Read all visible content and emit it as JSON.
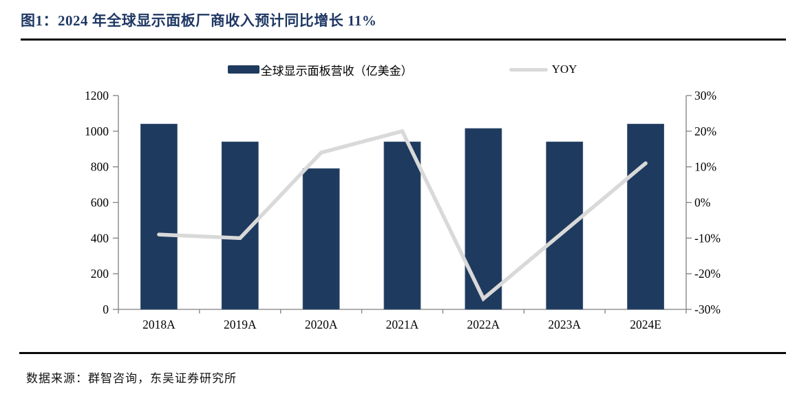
{
  "page": {
    "title": "图1：2024 年全球显示面板厂商收入预计同比增长 11%",
    "source": "数据来源：群智咨询，东吴证券研究所"
  },
  "legend": {
    "bar_label": "全球显示面板营收（亿美金）",
    "line_label": "YOY"
  },
  "colors": {
    "bar": "#1E3A5E",
    "line": "#D9D9D9",
    "axis": "#7F7F7F",
    "title": "#1F3864",
    "tick_text": "#000000"
  },
  "chart_data": {
    "type": "combo",
    "title": "2024 年全球显示面板厂商收入预计同比增长 11%",
    "categories": [
      "2018A",
      "2019A",
      "2020A",
      "2021A",
      "2022A",
      "2023A",
      "2024E"
    ],
    "series": [
      {
        "name": "全球显示面板营收（亿美金）",
        "type": "bar",
        "axis": "left",
        "color": "#1E3A5E",
        "values": [
          1040,
          940,
          790,
          940,
          1015,
          940,
          1040
        ]
      },
      {
        "name": "YOY",
        "type": "line",
        "axis": "right",
        "color": "#D9D9D9",
        "values": [
          -9,
          -10,
          14,
          20,
          -27,
          -8,
          11
        ],
        "unit": "%"
      }
    ],
    "left_axis": {
      "min": 0,
      "max": 1200,
      "step": 200,
      "tick_labels": [
        "0",
        "200",
        "400",
        "600",
        "800",
        "1000",
        "1200"
      ]
    },
    "right_axis": {
      "min": -30,
      "max": 30,
      "step": 10,
      "tick_labels": [
        "-30%",
        "-20%",
        "-10%",
        "0%",
        "10%",
        "20%",
        "30%"
      ]
    },
    "legend_position": "top",
    "grid": false
  }
}
